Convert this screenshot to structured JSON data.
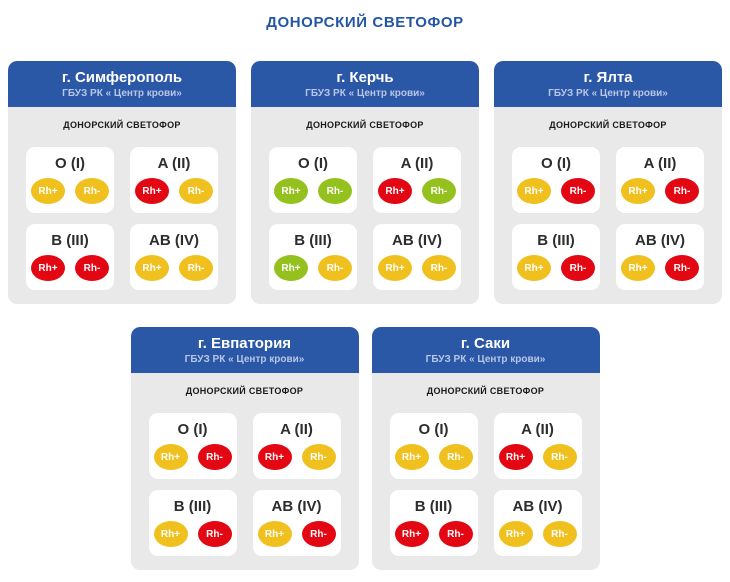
{
  "page": {
    "title": "ДОНОРСКИЙ СВЕТОФОР"
  },
  "labels": {
    "section": "ДОНОРСКИЙ СВЕТОФОР",
    "rh_plus": "Rh+",
    "rh_minus": "Rh-"
  },
  "colors": {
    "title_blue": "#2456a4",
    "header_blue": "#2b57a7",
    "org_text": "#b7c6e6",
    "card_body_gray": "#e9e9e9",
    "red": "#e30613",
    "yellow": "#f0c11e",
    "green": "#95c11f"
  },
  "cards": [
    {
      "city": "г. Симферополь",
      "org": "ГБУЗ РК « Центр крови»",
      "groups": [
        {
          "label": "O (I)",
          "rh_plus": "yellow",
          "rh_minus": "yellow"
        },
        {
          "label": "A (II)",
          "rh_plus": "red",
          "rh_minus": "yellow"
        },
        {
          "label": "B (III)",
          "rh_plus": "red",
          "rh_minus": "red"
        },
        {
          "label": "AB (IV)",
          "rh_plus": "yellow",
          "rh_minus": "yellow"
        }
      ]
    },
    {
      "city": "г. Керчь",
      "org": "ГБУЗ РК « Центр крови»",
      "groups": [
        {
          "label": "O (I)",
          "rh_plus": "green",
          "rh_minus": "green"
        },
        {
          "label": "A (II)",
          "rh_plus": "red",
          "rh_minus": "green"
        },
        {
          "label": "B (III)",
          "rh_plus": "green",
          "rh_minus": "yellow"
        },
        {
          "label": "AB (IV)",
          "rh_plus": "yellow",
          "rh_minus": "yellow"
        }
      ]
    },
    {
      "city": "г. Ялта",
      "org": "ГБУЗ РК « Центр крови»",
      "groups": [
        {
          "label": "O (I)",
          "rh_plus": "yellow",
          "rh_minus": "red"
        },
        {
          "label": "A (II)",
          "rh_plus": "yellow",
          "rh_minus": "red"
        },
        {
          "label": "B (III)",
          "rh_plus": "yellow",
          "rh_minus": "red"
        },
        {
          "label": "AB (IV)",
          "rh_plus": "yellow",
          "rh_minus": "red"
        }
      ]
    },
    {
      "city": "г. Евпатория",
      "org": "ГБУЗ РК « Центр крови»",
      "groups": [
        {
          "label": "O (I)",
          "rh_plus": "yellow",
          "rh_minus": "red"
        },
        {
          "label": "A (II)",
          "rh_plus": "red",
          "rh_minus": "yellow"
        },
        {
          "label": "B (III)",
          "rh_plus": "yellow",
          "rh_minus": "red"
        },
        {
          "label": "AB (IV)",
          "rh_plus": "yellow",
          "rh_minus": "red"
        }
      ]
    },
    {
      "city": "г. Саки",
      "org": "ГБУЗ РК « Центр крови»",
      "groups": [
        {
          "label": "O (I)",
          "rh_plus": "yellow",
          "rh_minus": "yellow"
        },
        {
          "label": "A (II)",
          "rh_plus": "red",
          "rh_minus": "yellow"
        },
        {
          "label": "B (III)",
          "rh_plus": "red",
          "rh_minus": "red"
        },
        {
          "label": "AB (IV)",
          "rh_plus": "yellow",
          "rh_minus": "yellow"
        }
      ]
    }
  ]
}
